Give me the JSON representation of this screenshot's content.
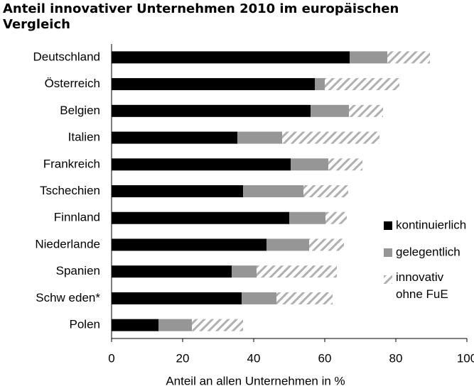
{
  "chart_data": {
    "type": "stacked_barh",
    "title": "Anteil innovativer Unternehmen 2010 im europäischen Vergleich",
    "x_label": "Anteil an allen Unternehmen in %",
    "categories": [
      "Deutschland",
      "Österreich",
      "Belgien",
      "Italien",
      "Frankreich",
      "Tschechien",
      "Finnland",
      "Niederlande",
      "Spanien",
      "Schw eden*",
      "Polen"
    ],
    "series": [
      {
        "name": "kontinuierlich",
        "color": "#000000",
        "values": [
          67,
          57.2,
          56,
          35.4,
          50.4,
          37,
          50,
          43.6,
          33.8,
          36.6,
          13.2
        ]
      },
      {
        "name": "gelegentlich",
        "color": "#969696",
        "values": [
          10.6,
          2.8,
          10.8,
          12.6,
          10.6,
          17,
          10.2,
          12,
          7,
          9.8,
          9.4
        ]
      },
      {
        "name": "innovativ ohne FuE",
        "color": "hatch",
        "values": [
          12,
          21,
          9.6,
          27.4,
          9.6,
          12.6,
          6,
          9.8,
          22.6,
          15.8,
          14.4
        ]
      }
    ],
    "xlim": [
      0,
      100
    ],
    "xticks": [
      0,
      20,
      40,
      60,
      80,
      100
    ],
    "legend": "right"
  }
}
